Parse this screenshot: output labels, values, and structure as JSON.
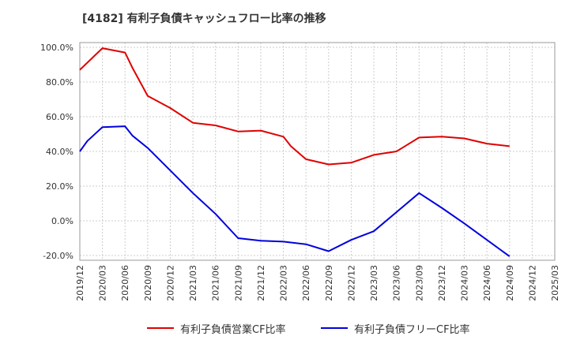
{
  "title": "[4182]  有利子負債キャッシュフロー比率の推移",
  "chart_data": {
    "type": "line",
    "title": "[4182]  有利子負債キャッシュフロー比率の推移",
    "xlabel": "",
    "ylabel": "",
    "ylim": [
      -20,
      100
    ],
    "y_ticks": [
      "100.0%",
      "80.0%",
      "60.0%",
      "40.0%",
      "20.0%",
      "0.0%",
      "-20.0%"
    ],
    "y_tick_values": [
      100,
      80,
      60,
      40,
      20,
      0,
      -20
    ],
    "x_ticks": [
      "2019/12",
      "2020/03",
      "2020/06",
      "2020/09",
      "2020/12",
      "2021/03",
      "2021/06",
      "2021/09",
      "2021/12",
      "2022/03",
      "2022/06",
      "2022/09",
      "2022/12",
      "2023/03",
      "2023/06",
      "2023/09",
      "2023/12",
      "2024/03",
      "2024/06",
      "2024/09",
      "2024/12",
      "2025/03"
    ],
    "grid": true,
    "legend_position": "bottom",
    "series": [
      {
        "name": "有利子負債営業CF比率",
        "color": "#e00000",
        "points": [
          [
            "2019/12",
            87
          ],
          [
            "2020/03",
            99.5
          ],
          [
            "2020/06",
            97
          ],
          [
            "2020/07",
            88
          ],
          [
            "2020/09",
            72
          ],
          [
            "2020/12",
            65
          ],
          [
            "2021/03",
            56.5
          ],
          [
            "2021/06",
            55
          ],
          [
            "2021/09",
            51.5
          ],
          [
            "2021/12",
            52
          ],
          [
            "2022/03",
            48.5
          ],
          [
            "2022/04",
            43
          ],
          [
            "2022/06",
            35.5
          ],
          [
            "2022/09",
            32.5
          ],
          [
            "2022/12",
            33.5
          ],
          [
            "2023/03",
            38
          ],
          [
            "2023/06",
            40
          ],
          [
            "2023/09",
            48
          ],
          [
            "2023/12",
            48.5
          ],
          [
            "2024/03",
            47.5
          ],
          [
            "2024/06",
            44.5
          ],
          [
            "2024/09",
            43
          ]
        ]
      },
      {
        "name": "有利子負債フリーCF比率",
        "color": "#0000dd",
        "points": [
          [
            "2019/12",
            40
          ],
          [
            "2020/01",
            46
          ],
          [
            "2020/03",
            54
          ],
          [
            "2020/06",
            54.5
          ],
          [
            "2020/07",
            49
          ],
          [
            "2020/09",
            42
          ],
          [
            "2020/12",
            29
          ],
          [
            "2021/03",
            16
          ],
          [
            "2021/06",
            4
          ],
          [
            "2021/09",
            -10
          ],
          [
            "2021/12",
            -11.5
          ],
          [
            "2022/03",
            -12
          ],
          [
            "2022/06",
            -13.5
          ],
          [
            "2022/09",
            -17.5
          ],
          [
            "2022/12",
            -11
          ],
          [
            "2023/03",
            -6
          ],
          [
            "2023/06",
            5
          ],
          [
            "2023/09",
            16
          ],
          [
            "2023/12",
            7.5
          ],
          [
            "2024/03",
            -1.5
          ],
          [
            "2024/06",
            -11
          ],
          [
            "2024/09",
            -20.5
          ]
        ]
      }
    ]
  }
}
